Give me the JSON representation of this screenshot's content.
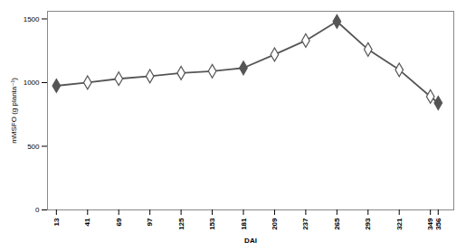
{
  "chart_data": {
    "type": "line",
    "xlabel": "DAI",
    "ylabel": "mMSFO (g planta⁻¹)",
    "x": [
      13,
      41,
      69,
      97,
      125,
      153,
      181,
      209,
      237,
      265,
      293,
      321,
      349,
      356
    ],
    "series": [
      {
        "type": "line",
        "color": "#555555",
        "values": [
          975,
          1000,
          1030,
          1050,
          1075,
          1090,
          1115,
          1220,
          1330,
          1480,
          1260,
          1100,
          890,
          840
        ]
      },
      {
        "type": "scatter",
        "marker": "diamond",
        "color": "#555555",
        "values": [
          975,
          null,
          null,
          null,
          null,
          null,
          1115,
          null,
          null,
          1480,
          null,
          null,
          null,
          840
        ]
      },
      {
        "type": "scatter",
        "marker": "diamond_open",
        "color": "#555555",
        "values": [
          null,
          1000,
          1030,
          1050,
          1075,
          1090,
          null,
          1220,
          1330,
          null,
          1260,
          1100,
          890,
          null
        ]
      }
    ],
    "xlim": [
      5,
      370
    ],
    "xticks": [
      13,
      41,
      69,
      97,
      125,
      153,
      181,
      209,
      237,
      265,
      293,
      321,
      349,
      356
    ],
    "ylim": [
      0,
      1560
    ],
    "yticks": [
      0,
      500,
      1000,
      1500
    ],
    "grid": false
  }
}
